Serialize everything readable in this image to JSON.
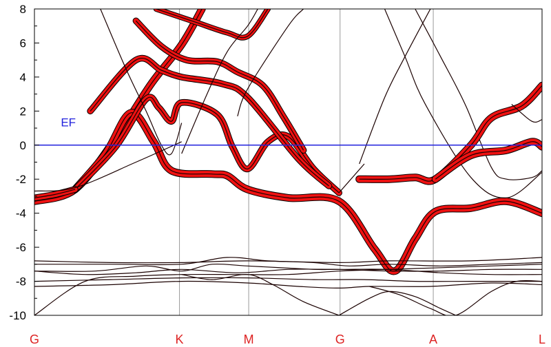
{
  "chart_data": {
    "type": "line",
    "title": "",
    "xlabel": "",
    "ylabel": "",
    "ylim": [
      -10,
      8
    ],
    "xlim": [
      0,
      1
    ],
    "yticks": [
      8,
      6,
      4,
      2,
      0,
      -2,
      -4,
      -6,
      -8,
      -10
    ],
    "kpoints": [
      {
        "label": "G",
        "x": 0.0
      },
      {
        "label": "K",
        "x": 0.2857
      },
      {
        "label": "M",
        "x": 0.4221
      },
      {
        "label": "G",
        "x": 0.6021
      },
      {
        "label": "A",
        "x": 0.7857
      },
      {
        "label": "L",
        "x": 1.0
      }
    ],
    "fermi": {
      "label": "EF",
      "energy": 0
    },
    "colors": {
      "bands": "#1a0000",
      "weight": "#ee1111",
      "fermi": "#2222dd",
      "kpoint_label": "#dd2222",
      "vline": "#999999"
    },
    "series": [
      {
        "values": [
          [
            0,
            -3.3
          ],
          [
            0.08,
            -2.6
          ],
          [
            0.16,
            0.4
          ],
          [
            0.23,
            3.6
          ],
          [
            0.29,
            5.9
          ],
          [
            0.33,
            8
          ]
        ],
        "weight": 0.5
      },
      {
        "values": [
          [
            0.08,
            -2.6
          ],
          [
            0.14,
            -0.5
          ],
          [
            0.19,
            1.9
          ],
          [
            0.235,
            0.2
          ],
          [
            0.27,
            -1.5
          ],
          [
            0.35,
            -1.7
          ],
          [
            0.38,
            -1.8
          ],
          [
            0.42,
            -2.6
          ],
          [
            0.5,
            -3.1
          ],
          [
            0.6,
            -3.3
          ],
          [
            0.67,
            -6.1
          ],
          [
            0.71,
            -7.4
          ],
          [
            0.75,
            -5.5
          ],
          [
            0.79,
            -3.9
          ],
          [
            0.86,
            -3.7
          ],
          [
            0.93,
            -3.3
          ],
          [
            1.0,
            -4.0
          ]
        ],
        "weight": 0.5
      },
      {
        "values": [
          [
            0.08,
            -2.6
          ],
          [
            0.16,
            -0.1
          ],
          [
            0.22,
            2.7
          ],
          [
            0.245,
            2.2
          ],
          [
            0.27,
            1.4
          ],
          [
            0.29,
            2.5
          ],
          [
            0.36,
            1.8
          ],
          [
            0.39,
            -0.1
          ],
          [
            0.42,
            -1.4
          ],
          [
            0.46,
            0.2
          ],
          [
            0.5,
            0.5
          ],
          [
            0.55,
            -1.4
          ],
          [
            0.6,
            -2.8
          ]
        ],
        "weight": 0.4
      },
      {
        "values": [
          [
            0.11,
            2.0
          ],
          [
            0.2,
            5.0
          ],
          [
            0.25,
            4.4
          ],
          [
            0.29,
            4.0
          ],
          [
            0.37,
            3.6
          ],
          [
            0.42,
            2.8
          ],
          [
            0.52,
            -0.8
          ],
          [
            0.58,
            -2.4
          ]
        ],
        "weight": 0.4
      },
      {
        "values": [
          [
            0.2,
            7.3
          ],
          [
            0.25,
            5.8
          ],
          [
            0.3,
            5.0
          ],
          [
            0.36,
            4.9
          ],
          [
            0.4,
            4.3
          ],
          [
            0.45,
            3.5
          ],
          [
            0.49,
            1.7
          ],
          [
            0.53,
            -0.3
          ]
        ],
        "weight": 0.4
      },
      {
        "values": [
          [
            0.24,
            8
          ],
          [
            0.28,
            7.6
          ],
          [
            0.32,
            7.2
          ],
          [
            0.38,
            6.6
          ],
          [
            0.42,
            6.4
          ],
          [
            0.46,
            8
          ]
        ],
        "weight": 0.3
      },
      {
        "values": [
          [
            0.13,
            8
          ],
          [
            0.18,
            4.5
          ],
          [
            0.22,
            2.0
          ],
          [
            0.25,
            0.0
          ],
          [
            0.27,
            -0.5
          ],
          [
            0.29,
            1.3
          ]
        ],
        "weight": 0.0
      },
      {
        "values": [
          [
            0.29,
            -0.5
          ],
          [
            0.34,
            3.0
          ],
          [
            0.38,
            5.5
          ],
          [
            0.42,
            7.0
          ],
          [
            0.44,
            8
          ]
        ],
        "weight": 0.0
      },
      {
        "values": [
          [
            0.4,
            1.7
          ],
          [
            0.42,
            3.3
          ],
          [
            0.5,
            7.0
          ],
          [
            0.53,
            8
          ]
        ],
        "weight": 0.0
      },
      {
        "values": [
          [
            0.64,
            -1.1
          ],
          [
            0.69,
            2.8
          ],
          [
            0.73,
            5.2
          ],
          [
            0.78,
            8
          ]
        ],
        "weight": 0.0
      },
      {
        "values": [
          [
            0.69,
            8
          ],
          [
            0.73,
            5.2
          ],
          [
            0.77,
            2.4
          ],
          [
            0.86,
            -1.9
          ],
          [
            0.93,
            -3.1
          ],
          [
            1.0,
            -1.6
          ]
        ],
        "weight": 0.0
      },
      {
        "values": [
          [
            0.75,
            8
          ],
          [
            0.8,
            5.2
          ],
          [
            0.85,
            2.3
          ],
          [
            0.9,
            -1.3
          ],
          [
            0.93,
            -2.0
          ],
          [
            0.98,
            -1.9
          ],
          [
            1.0,
            -1.5
          ]
        ],
        "weight": 0.0
      },
      {
        "values": [
          [
            0.6,
            -2.8
          ],
          [
            0.65,
            -1.1
          ]
        ],
        "weight": 0.0
      },
      {
        "values": [
          [
            0.64,
            -2.0
          ],
          [
            0.7,
            -2.0
          ],
          [
            0.75,
            -1.9
          ],
          [
            0.79,
            -2.0
          ],
          [
            0.86,
            0.0
          ],
          [
            0.9,
            1.6
          ],
          [
            0.96,
            2.3
          ],
          [
            1.0,
            3.5
          ]
        ],
        "weight": 0.5
      },
      {
        "values": [
          [
            0.79,
            -2.0
          ],
          [
            0.86,
            -0.6
          ],
          [
            0.93,
            -0.3
          ],
          [
            0.98,
            0.2
          ],
          [
            1.0,
            -0.1
          ]
        ],
        "weight": 0.5
      },
      {
        "values": [
          [
            0.94,
            2.4
          ],
          [
            0.98,
            1.4
          ],
          [
            1.0,
            1.5
          ]
        ],
        "weight": 0.0
      },
      {
        "values": [
          [
            0.0,
            -3.1
          ],
          [
            0.04,
            -2.9
          ],
          [
            0.08,
            -2.6
          ]
        ],
        "weight": 0.4
      },
      {
        "values": [
          [
            0.0,
            -2.7
          ],
          [
            0.08,
            -2.5
          ],
          [
            0.2,
            -1.0
          ],
          [
            0.29,
            0.2
          ]
        ],
        "weight": 0.0
      },
      {
        "values": [
          [
            0.0,
            -10.0
          ],
          [
            0.1,
            -8.0
          ],
          [
            0.2,
            -7.7
          ],
          [
            0.29,
            -7.6
          ],
          [
            0.4,
            -7.6
          ],
          [
            0.5,
            -7.6
          ],
          [
            0.6,
            -7.4
          ],
          [
            0.7,
            -7.3
          ],
          [
            0.8,
            -7.2
          ],
          [
            0.9,
            -7.1
          ],
          [
            1.0,
            -7.0
          ]
        ],
        "weight": 0.0
      },
      {
        "values": [
          [
            0.0,
            -6.8
          ],
          [
            0.15,
            -6.9
          ],
          [
            0.29,
            -6.9
          ],
          [
            0.42,
            -6.8
          ],
          [
            0.6,
            -6.9
          ],
          [
            0.7,
            -6.8
          ],
          [
            0.86,
            -6.8
          ],
          [
            1.0,
            -6.6
          ]
        ],
        "weight": 0.0
      },
      {
        "values": [
          [
            0.0,
            -7.4
          ],
          [
            0.12,
            -7.4
          ],
          [
            0.22,
            -7.1
          ],
          [
            0.29,
            -7.4
          ],
          [
            0.35,
            -7.0
          ],
          [
            0.42,
            -7.1
          ],
          [
            0.55,
            -7.3
          ],
          [
            0.6,
            -7.3
          ],
          [
            0.7,
            -7.4
          ],
          [
            0.8,
            -7.4
          ],
          [
            0.9,
            -7.3
          ],
          [
            1.0,
            -7.3
          ]
        ],
        "weight": 0.0
      },
      {
        "values": [
          [
            0.0,
            -7.4
          ],
          [
            0.1,
            -7.6
          ],
          [
            0.2,
            -7.5
          ],
          [
            0.29,
            -7.3
          ],
          [
            0.4,
            -7.5
          ],
          [
            0.5,
            -7.3
          ],
          [
            0.6,
            -7.3
          ],
          [
            0.7,
            -7.3
          ],
          [
            0.8,
            -7.5
          ],
          [
            0.9,
            -7.6
          ],
          [
            1.0,
            -7.6
          ]
        ],
        "weight": 0.0
      },
      {
        "values": [
          [
            0.0,
            -8.0
          ],
          [
            0.15,
            -7.9
          ],
          [
            0.29,
            -7.8
          ],
          [
            0.42,
            -7.8
          ],
          [
            0.55,
            -7.9
          ],
          [
            0.65,
            -7.9
          ],
          [
            0.75,
            -8.0
          ],
          [
            0.86,
            -8.0
          ],
          [
            1.0,
            -8.0
          ]
        ],
        "weight": 0.0
      },
      {
        "values": [
          [
            0.0,
            -8.3
          ],
          [
            0.15,
            -8.2
          ],
          [
            0.29,
            -8.0
          ],
          [
            0.42,
            -8.1
          ],
          [
            0.52,
            -8.3
          ],
          [
            0.6,
            -8.4
          ],
          [
            0.66,
            -8.3
          ],
          [
            0.78,
            -8.3
          ],
          [
            0.9,
            -8.1
          ],
          [
            1.0,
            -8.2
          ]
        ],
        "weight": 0.0
      },
      {
        "values": [
          [
            0.0,
            -7.0
          ],
          [
            0.15,
            -7.0
          ],
          [
            0.29,
            -7.0
          ],
          [
            0.38,
            -6.6
          ],
          [
            0.46,
            -6.8
          ],
          [
            0.55,
            -6.9
          ],
          [
            0.62,
            -7.1
          ],
          [
            0.7,
            -7.0
          ],
          [
            0.8,
            -7.1
          ],
          [
            0.9,
            -7.0
          ],
          [
            1.0,
            -6.9
          ]
        ],
        "weight": 0.0
      },
      {
        "values": [
          [
            0.29,
            -7.6
          ],
          [
            0.35,
            -7.9
          ],
          [
            0.42,
            -7.6
          ],
          [
            0.47,
            -8.2
          ],
          [
            0.53,
            -9.2
          ],
          [
            0.6,
            -10.0
          ]
        ],
        "weight": 0.0
      },
      {
        "values": [
          [
            0.6,
            -10.0
          ],
          [
            0.66,
            -9.0
          ],
          [
            0.7,
            -8.6
          ],
          [
            0.75,
            -8.9
          ],
          [
            0.8,
            -9.6
          ],
          [
            0.83,
            -10.0
          ]
        ],
        "weight": 0.0
      },
      {
        "values": [
          [
            0.66,
            -8.3
          ],
          [
            0.72,
            -8.8
          ],
          [
            0.78,
            -9.6
          ],
          [
            0.83,
            -10.0
          ],
          [
            0.9,
            -8.6
          ],
          [
            0.95,
            -8.0
          ],
          [
            1.0,
            -8.0
          ]
        ],
        "weight": 0.0
      }
    ]
  }
}
